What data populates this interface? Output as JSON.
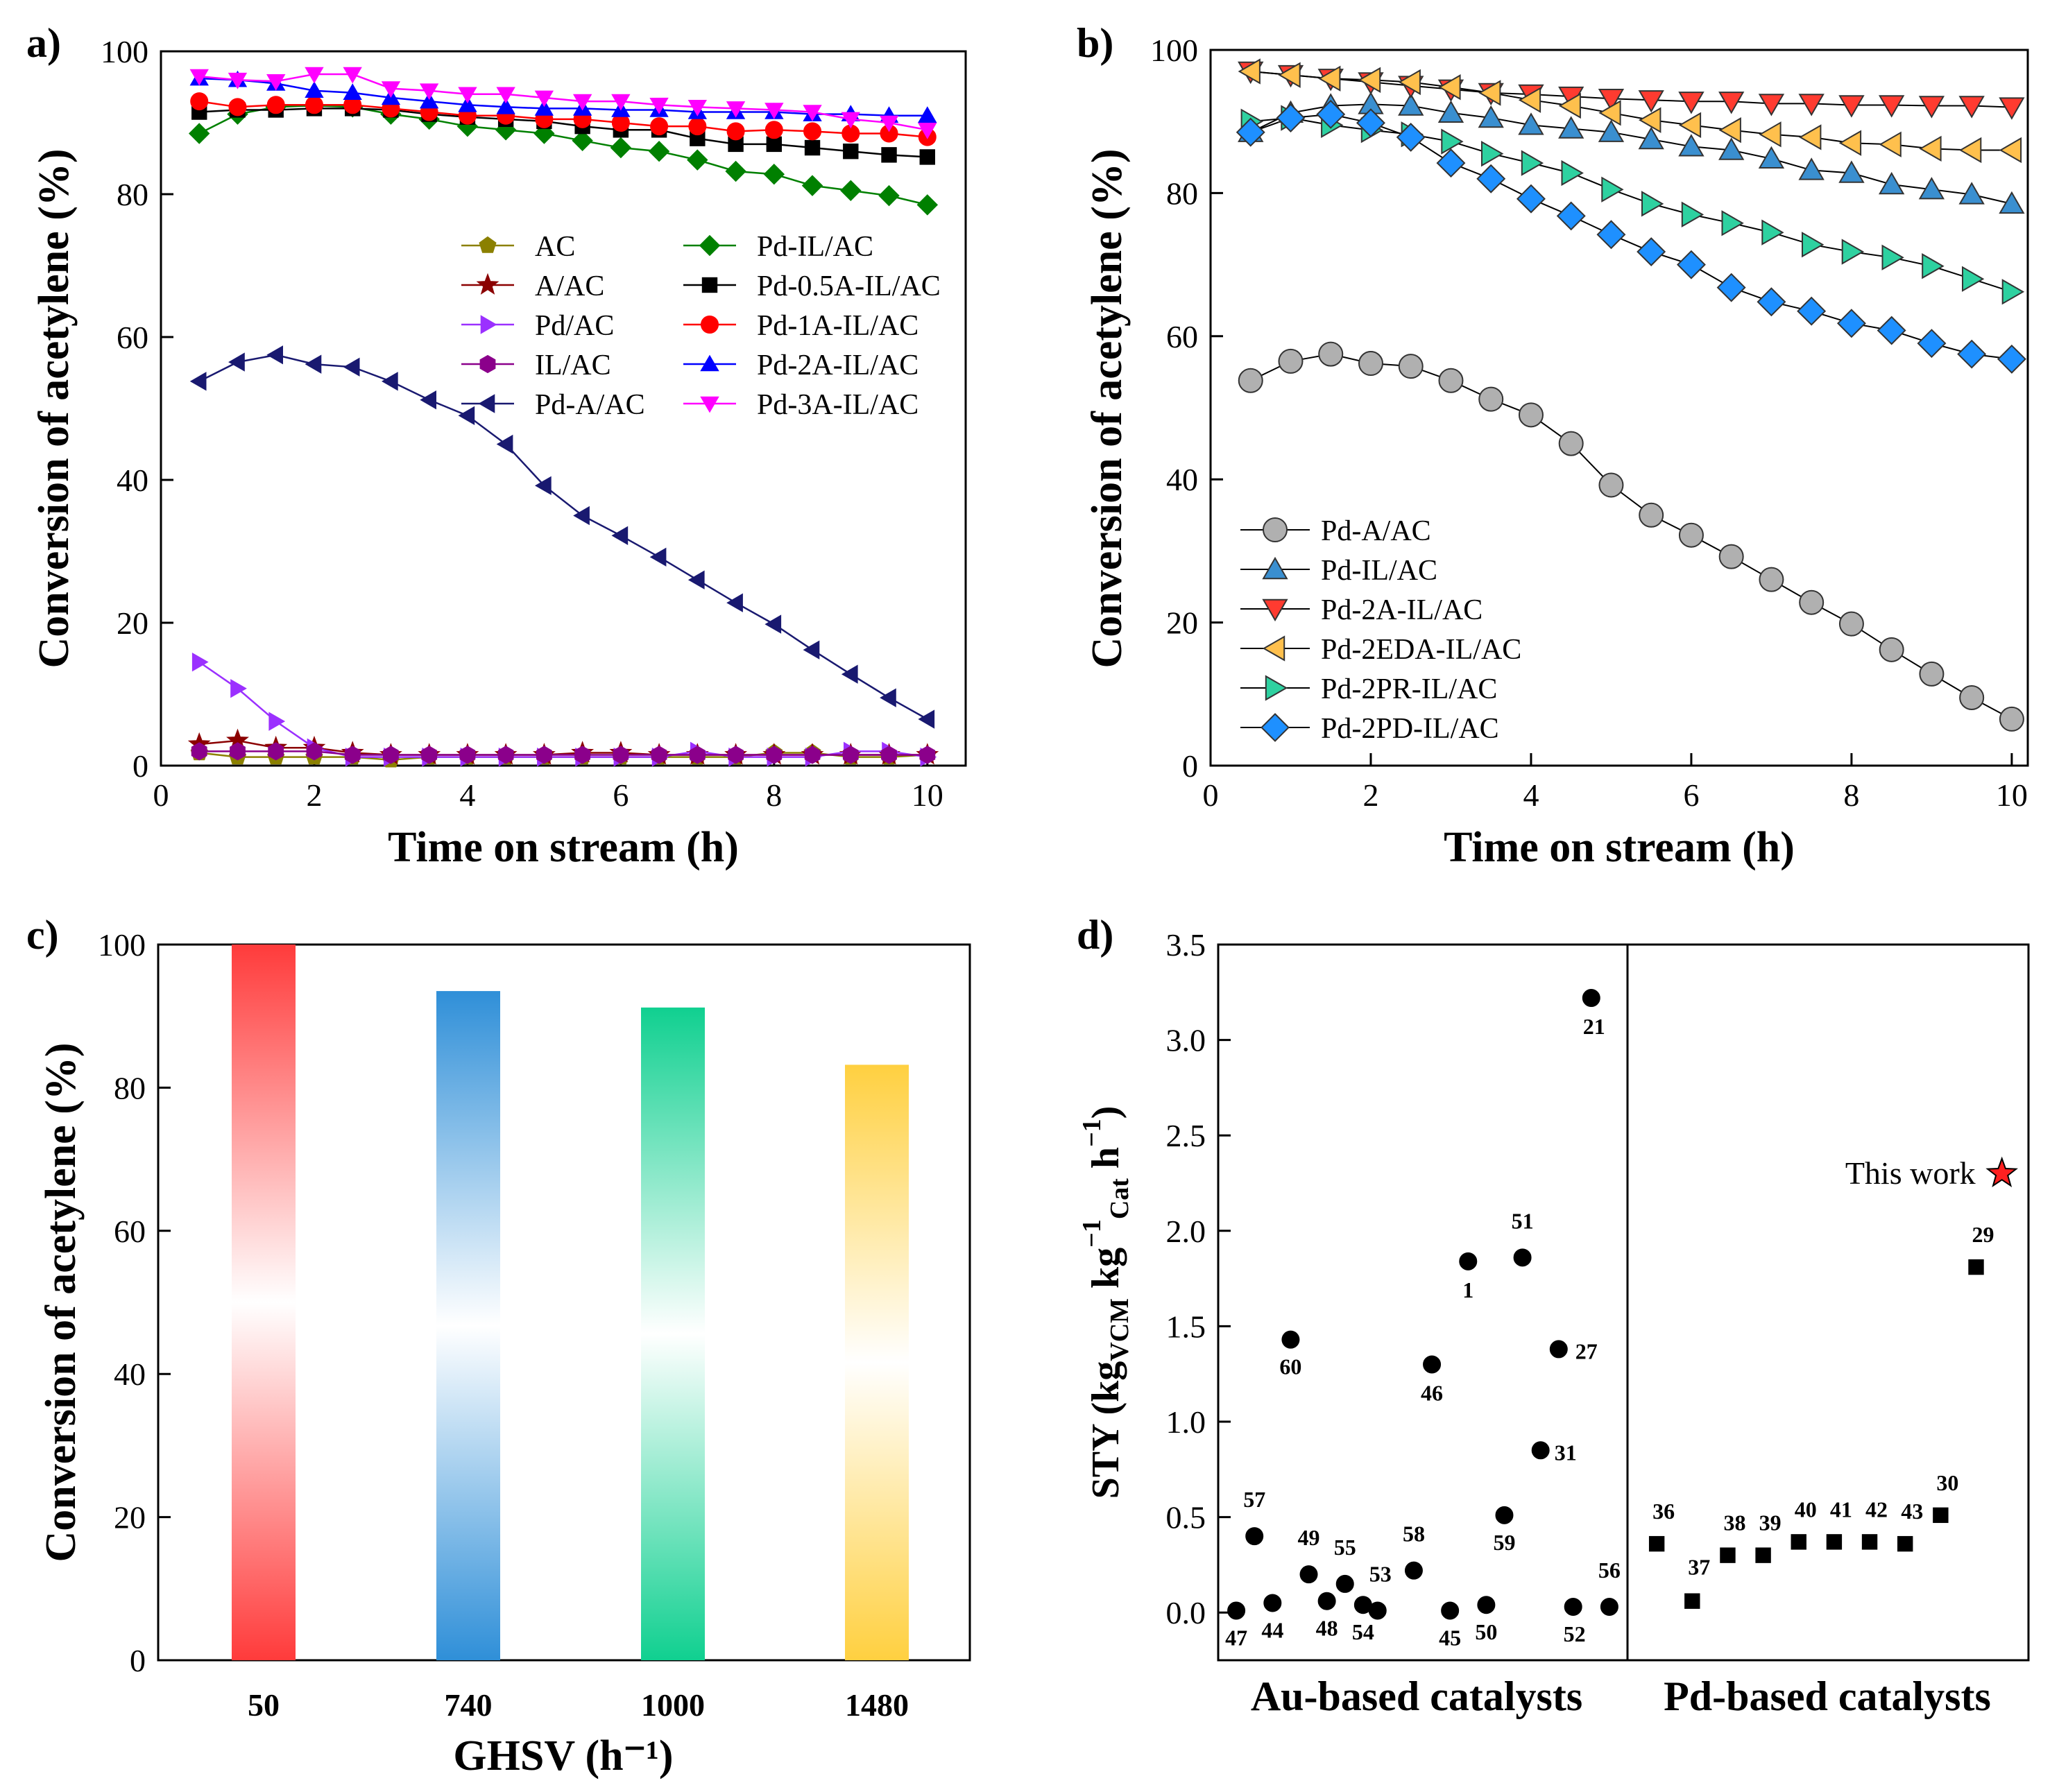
{
  "colors": {
    "AC": "#8B8000",
    "A/AC": "#8B0000",
    "Pd/AC": "#9B30FF",
    "IL/AC": "#8B008B",
    "Pd-A/AC": "#191970",
    "Pd-IL/AC": "#008000",
    "Pd-0.5A-IL/AC": "#000000",
    "Pd-1A-IL/AC": "#FF0000",
    "Pd-2A-IL/AC": "#0000FF",
    "Pd-3A-IL/AC": "#FF00FF",
    "b_gray": "#B0B0B0",
    "b_blue": "#3A8FD0",
    "b_red": "#FF3B30",
    "b_orange": "#FFC04D",
    "b_green": "#2ED1A0",
    "b_diamond": "#1E90FF",
    "star": "#FF2020",
    "bar_red": "#FF3B3B",
    "bar_blue": "#2F8FD8",
    "bar_green": "#10D090",
    "bar_yellow": "#FFD040"
  },
  "panels": {
    "a": "a)",
    "b": "b)",
    "c": "c)",
    "d": "d)"
  },
  "chart_data": [
    {
      "id": "a",
      "type": "line",
      "xlabel": "Time on stream (h)",
      "ylabel": "Conversion of acetylene (%)",
      "xlim": [
        0,
        10.5
      ],
      "ylim": [
        0,
        100
      ],
      "xticks": [
        0,
        2,
        4,
        6,
        8,
        10
      ],
      "yticks": [
        0,
        20,
        40,
        60,
        80,
        100
      ],
      "x": [
        0.5,
        1,
        1.5,
        2,
        2.5,
        3,
        3.5,
        4,
        4.5,
        5,
        5.5,
        6,
        6.5,
        7,
        7.5,
        8,
        8.5,
        9,
        9.5,
        10
      ],
      "series": [
        {
          "name": "AC",
          "marker": "pentagon",
          "values": [
            1.8,
            1.2,
            1.2,
            1.2,
            1.2,
            0.8,
            1.2,
            1.2,
            1.2,
            1.2,
            1.2,
            1.2,
            1.2,
            1.2,
            1.2,
            1.8,
            1.8,
            1.2,
            1.2,
            1.5
          ]
        },
        {
          "name": "A/AC",
          "marker": "star",
          "values": [
            3.0,
            3.5,
            2.5,
            2.5,
            1.8,
            1.5,
            1.5,
            1.5,
            1.5,
            1.5,
            1.8,
            1.8,
            1.5,
            1.5,
            1.5,
            1.5,
            1.5,
            1.5,
            1.5,
            1.5
          ]
        },
        {
          "name": "Pd/AC",
          "marker": "triangle-right",
          "values": [
            14.5,
            10.8,
            6.2,
            2.5,
            1.2,
            1.2,
            1.2,
            1.2,
            1.2,
            1.2,
            1.2,
            1.2,
            1.2,
            2.0,
            1.2,
            1.2,
            1.2,
            2.0,
            2.0,
            1.2
          ]
        },
        {
          "name": "IL/AC",
          "marker": "hexagon",
          "values": [
            2.0,
            2.0,
            2.0,
            2.0,
            1.5,
            1.5,
            1.5,
            1.5,
            1.5,
            1.5,
            1.5,
            1.5,
            1.5,
            1.5,
            1.5,
            1.5,
            1.5,
            1.5,
            1.5,
            1.5
          ]
        },
        {
          "name": "Pd-A/AC",
          "marker": "triangle-left",
          "values": [
            53.8,
            56.5,
            57.5,
            56.2,
            55.8,
            53.8,
            51.2,
            49.0,
            45.0,
            39.2,
            35.0,
            32.2,
            29.2,
            26.0,
            22.8,
            19.8,
            16.2,
            12.8,
            9.5,
            6.5
          ]
        },
        {
          "name": "Pd-IL/AC",
          "marker": "diamond",
          "values": [
            88.5,
            91.2,
            92.2,
            92.4,
            92.2,
            91.2,
            90.5,
            89.5,
            89.0,
            88.5,
            87.5,
            86.5,
            86.0,
            84.8,
            83.2,
            82.8,
            81.2,
            80.5,
            79.8,
            78.5
          ]
        },
        {
          "name": "Pd-0.5A-IL/AC",
          "marker": "square",
          "values": [
            91.5,
            91.8,
            91.8,
            92.0,
            92.0,
            91.8,
            91.2,
            90.8,
            90.5,
            90.2,
            89.5,
            89.0,
            89.0,
            87.8,
            87.0,
            87.0,
            86.5,
            86.0,
            85.5,
            85.2
          ]
        },
        {
          "name": "Pd-1A-IL/AC",
          "marker": "circle",
          "values": [
            93.0,
            92.2,
            92.5,
            92.5,
            92.5,
            92.0,
            91.5,
            91.0,
            91.0,
            90.5,
            90.5,
            90.0,
            89.5,
            89.5,
            88.8,
            89.0,
            88.8,
            88.5,
            88.5,
            88.0
          ]
        },
        {
          "name": "Pd-2A-IL/AC",
          "marker": "triangle-up",
          "values": [
            96.2,
            96.0,
            95.5,
            94.5,
            94.2,
            93.5,
            93.0,
            92.5,
            92.2,
            92.0,
            92.0,
            91.8,
            91.8,
            91.5,
            91.5,
            91.5,
            91.2,
            91.2,
            91.0,
            91.0
          ]
        },
        {
          "name": "Pd-3A-IL/AC",
          "marker": "triangle-down",
          "values": [
            96.5,
            96.0,
            95.8,
            96.8,
            96.8,
            94.8,
            94.5,
            94.0,
            94.0,
            93.5,
            93.0,
            93.0,
            92.5,
            92.2,
            92.0,
            91.8,
            91.5,
            90.5,
            90.0,
            89.0
          ]
        }
      ]
    },
    {
      "id": "b",
      "type": "line",
      "xlabel": "Time on stream (h)",
      "ylabel": "Conversion of acetylene (%)",
      "xlim": [
        0,
        10.2
      ],
      "ylim": [
        0,
        100
      ],
      "xticks": [
        0,
        2,
        4,
        6,
        8,
        10
      ],
      "yticks": [
        0,
        20,
        40,
        60,
        80,
        100
      ],
      "x": [
        0.5,
        1,
        1.5,
        2,
        2.5,
        3,
        3.5,
        4,
        4.5,
        5,
        5.5,
        6,
        6.5,
        7,
        7.5,
        8,
        8.5,
        9,
        9.5,
        10
      ],
      "series": [
        {
          "name": "Pd-A/AC",
          "marker": "circle",
          "values": [
            53.8,
            56.5,
            57.5,
            56.2,
            55.8,
            53.8,
            51.2,
            49.0,
            45.0,
            39.2,
            35.0,
            32.2,
            29.2,
            26.0,
            22.8,
            19.8,
            16.2,
            12.8,
            9.5,
            6.5
          ]
        },
        {
          "name": "Pd-IL/AC",
          "marker": "triangle-up",
          "values": [
            88.5,
            91.2,
            92.2,
            92.4,
            92.2,
            91.2,
            90.5,
            89.5,
            89.0,
            88.5,
            87.5,
            86.5,
            86.0,
            84.8,
            83.2,
            82.8,
            81.2,
            80.5,
            79.8,
            78.5
          ]
        },
        {
          "name": "Pd-2A-IL/AC",
          "marker": "triangle-down",
          "values": [
            97.0,
            96.5,
            96.0,
            95.5,
            95.0,
            94.5,
            94.0,
            93.8,
            93.5,
            93.2,
            93.0,
            92.8,
            92.8,
            92.5,
            92.5,
            92.3,
            92.3,
            92.2,
            92.2,
            92.0
          ]
        },
        {
          "name": "Pd-2EDA-IL/AC",
          "marker": "triangle-left",
          "values": [
            97.0,
            96.5,
            96.0,
            95.8,
            95.5,
            94.8,
            94.0,
            93.0,
            92.2,
            91.2,
            90.2,
            89.5,
            88.8,
            88.2,
            87.8,
            87.0,
            86.8,
            86.2,
            86.0,
            86.0
          ]
        },
        {
          "name": "Pd-2PR-IL/AC",
          "marker": "triangle-right",
          "values": [
            90.0,
            90.5,
            89.5,
            88.8,
            88.2,
            87.2,
            85.5,
            84.2,
            82.8,
            80.5,
            78.5,
            77.0,
            75.8,
            74.5,
            72.8,
            71.8,
            71.0,
            69.8,
            68.0,
            66.2
          ]
        },
        {
          "name": "Pd-2PD-IL/AC",
          "marker": "diamond",
          "values": [
            88.5,
            90.5,
            91.0,
            89.8,
            87.8,
            84.2,
            82.0,
            79.2,
            76.8,
            74.2,
            71.8,
            70.0,
            66.8,
            64.8,
            63.5,
            61.8,
            60.8,
            59.0,
            57.5,
            56.8
          ]
        }
      ]
    },
    {
      "id": "c",
      "type": "bar",
      "xlabel": "GHSV (h⁻¹)",
      "ylabel": "Conversion of acetylene (%)",
      "ylim": [
        0,
        100
      ],
      "yticks": [
        0,
        20,
        40,
        60,
        80,
        100
      ],
      "categories": [
        "50",
        "740",
        "1000",
        "1480"
      ],
      "values": [
        100,
        93.5,
        91.2,
        83.2
      ]
    },
    {
      "id": "d",
      "type": "scatter",
      "ylabel": "STY (kg",
      "ylabel_parts": [
        "STY (kg",
        "VCM",
        " kg",
        "−1",
        "Cat",
        " h",
        "−1",
        ")"
      ],
      "ylim": [
        -0.25,
        3.5
      ],
      "yticks": [
        0.0,
        0.5,
        1.0,
        1.5,
        2.0,
        2.5,
        3.0,
        3.5
      ],
      "ytick_labels": [
        "0.0",
        "0.5",
        "1.0",
        "1.5",
        "2.0",
        "2.5",
        "3.0",
        "3.5"
      ],
      "groups": [
        "Au-based catalysts",
        "Pd-based catalysts"
      ],
      "au_points": [
        {
          "label": "47",
          "x": 0.5,
          "y": 0.01
        },
        {
          "label": "57",
          "x": 1.0,
          "y": 0.4
        },
        {
          "label": "44",
          "x": 1.5,
          "y": 0.05
        },
        {
          "label": "60",
          "x": 2.0,
          "y": 1.43
        },
        {
          "label": "49",
          "x": 2.5,
          "y": 0.2
        },
        {
          "label": "48",
          "x": 3.0,
          "y": 0.06
        },
        {
          "label": "55",
          "x": 3.5,
          "y": 0.15
        },
        {
          "label": "54",
          "x": 4.0,
          "y": 0.04
        },
        {
          "label": "53",
          "x": 4.4,
          "y": 0.01
        },
        {
          "label": "58",
          "x": 5.4,
          "y": 0.22
        },
        {
          "label": "46",
          "x": 5.9,
          "y": 1.3
        },
        {
          "label": "45",
          "x": 6.4,
          "y": 0.01
        },
        {
          "label": "1",
          "x": 6.9,
          "y": 1.84
        },
        {
          "label": "50",
          "x": 7.4,
          "y": 0.04
        },
        {
          "label": "59",
          "x": 7.9,
          "y": 0.51
        },
        {
          "label": "51",
          "x": 8.4,
          "y": 1.86
        },
        {
          "label": "31",
          "x": 8.9,
          "y": 0.85
        },
        {
          "label": "27",
          "x": 9.4,
          "y": 1.38
        },
        {
          "label": "52",
          "x": 9.8,
          "y": 0.03
        },
        {
          "label": "21",
          "x": 10.3,
          "y": 3.22
        },
        {
          "label": "56",
          "x": 10.8,
          "y": 0.03
        }
      ],
      "pd_points": [
        {
          "label": "36",
          "x": 1,
          "y": 0.36
        },
        {
          "label": "37",
          "x": 2,
          "y": 0.06
        },
        {
          "label": "38",
          "x": 3,
          "y": 0.3
        },
        {
          "label": "39",
          "x": 4,
          "y": 0.3
        },
        {
          "label": "40",
          "x": 5,
          "y": 0.37
        },
        {
          "label": "41",
          "x": 6,
          "y": 0.37
        },
        {
          "label": "42",
          "x": 7,
          "y": 0.37
        },
        {
          "label": "43",
          "x": 8,
          "y": 0.36
        },
        {
          "label": "30",
          "x": 9,
          "y": 0.51
        },
        {
          "label": "29",
          "x": 10,
          "y": 1.81
        }
      ],
      "this_work": {
        "label": "This work",
        "x": 11,
        "y": 2.3
      }
    }
  ]
}
